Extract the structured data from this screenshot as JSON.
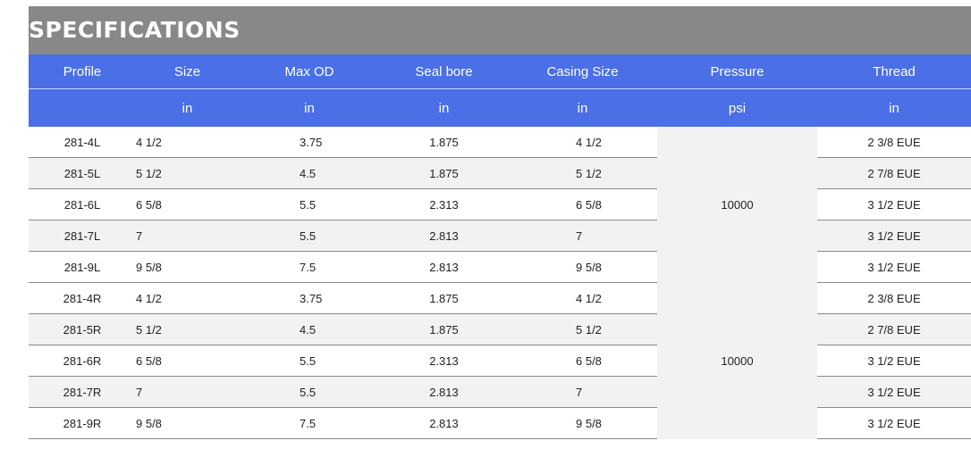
{
  "title": "SPECIFICATIONS",
  "headers": [
    "Profile",
    "Size",
    "Max OD",
    "Seal bore",
    "Casing Size",
    "Pressure",
    "Thread"
  ],
  "units": [
    "",
    "in",
    "in",
    "in",
    "in",
    "psi",
    "in"
  ],
  "groups": [
    {
      "pressure": "10000",
      "rows": [
        {
          "profile": "281-4L",
          "size": "4 1/2",
          "max_od": "3.75",
          "seal_bore": "1.875",
          "casing": "4 1/2",
          "thread": "2 3/8 EUE"
        },
        {
          "profile": "281-5L",
          "size": "5 1/2",
          "max_od": "4.5",
          "seal_bore": "1.875",
          "casing": "5 1/2",
          "thread": "2 7/8 EUE"
        },
        {
          "profile": "281-6L",
          "size": "6 5/8",
          "max_od": "5.5",
          "seal_bore": "2.313",
          "casing": "6 5/8",
          "thread": "3 1/2 EUE"
        },
        {
          "profile": "281-7L",
          "size": "7",
          "max_od": "5.5",
          "seal_bore": "2.813",
          "casing": "7",
          "thread": "3 1/2 EUE"
        },
        {
          "profile": "281-9L",
          "size": "9 5/8",
          "max_od": "7.5",
          "seal_bore": "2.813",
          "casing": "9 5/8",
          "thread": "3 1/2 EUE"
        }
      ]
    },
    {
      "pressure": "10000",
      "rows": [
        {
          "profile": "281-4R",
          "size": "4 1/2",
          "max_od": "3.75",
          "seal_bore": "1.875",
          "casing": "4 1/2",
          "thread": "2 3/8 EUE"
        },
        {
          "profile": "281-5R",
          "size": "5 1/2",
          "max_od": "4.5",
          "seal_bore": "1.875",
          "casing": "5 1/2",
          "thread": "2 7/8 EUE"
        },
        {
          "profile": "281-6R",
          "size": "6 5/8",
          "max_od": "5.5",
          "seal_bore": "2.313",
          "casing": "6 5/8",
          "thread": "3 1/2 EUE"
        },
        {
          "profile": "281-7R",
          "size": "7",
          "max_od": "5.5",
          "seal_bore": "2.813",
          "casing": "7",
          "thread": "3 1/2 EUE"
        },
        {
          "profile": "281-9R",
          "size": "9 5/8",
          "max_od": "7.5",
          "seal_bore": "2.813",
          "casing": "9 5/8",
          "thread": "3 1/2 EUE"
        }
      ]
    }
  ],
  "colors": {
    "title_bar": "#888888",
    "header": "#4a6fe6",
    "row_alt": "#f2f2f2"
  }
}
